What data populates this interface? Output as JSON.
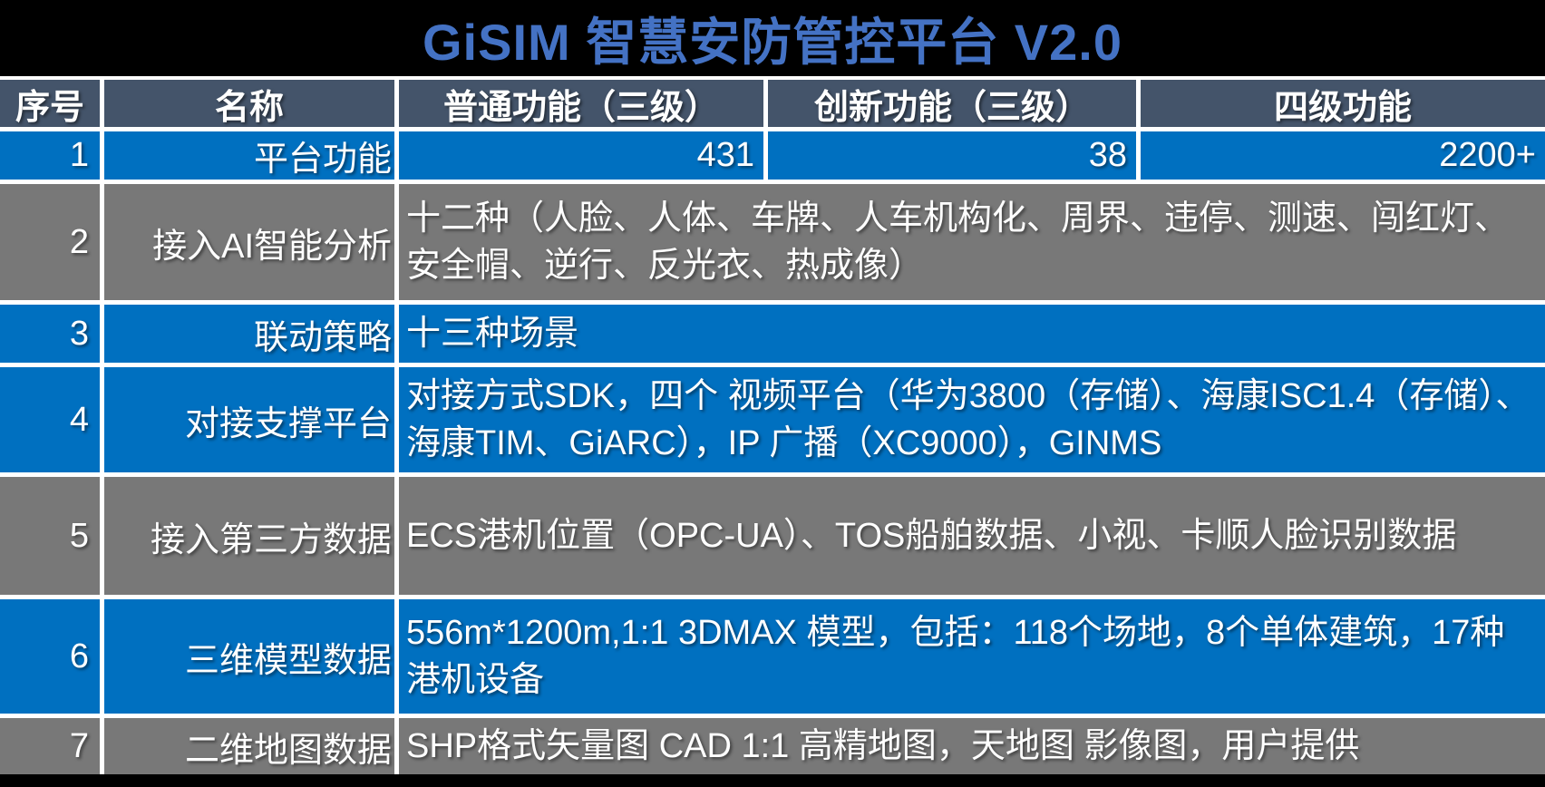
{
  "title": "GiSIM 智慧安防管控平台 V2.0",
  "colors": {
    "title_blue": "#4472C4",
    "header_slate": "#44546A",
    "row_blue": "#0070C0",
    "row_gray": "#787878",
    "separator_white": "#FFFFFF",
    "background_black": "#000000",
    "text_white": "#FFFFFF"
  },
  "table": {
    "columns": [
      "序号",
      "名称",
      "普通功能（三级）",
      "创新功能（三级）",
      "四级功能"
    ],
    "rows": [
      {
        "no": "1",
        "name": "平台功能",
        "tone": "blue",
        "values": [
          "431",
          "38",
          "2200+"
        ]
      },
      {
        "no": "2",
        "name": "接入AI智能分析",
        "tone": "gray",
        "detail": "十二种（人脸、人体、车牌、人车机构化、周界、违停、测速、闯红灯、安全帽、逆行、反光衣、热成像）"
      },
      {
        "no": "3",
        "name": "联动策略",
        "tone": "blue",
        "detail": "十三种场景"
      },
      {
        "no": "4",
        "name": "对接支撑平台",
        "tone": "blue",
        "detail": "对接方式SDK，四个 视频平台（华为3800（存储）、海康ISC1.4（存储）、海康TIM、GiARC），IP 广播（XC9000），GINMS"
      },
      {
        "no": "5",
        "name": "接入第三方数据",
        "tone": "gray",
        "detail": "ECS港机位置（OPC-UA）、TOS船舶数据、小视、卡顺人脸识别数据"
      },
      {
        "no": "6",
        "name": "三维模型数据",
        "tone": "blue",
        "detail": "556m*1200m,1:1 3DMAX 模型，包括：118个场地，8个单体建筑，17种港机设备"
      },
      {
        "no": "7",
        "name": "二维地图数据",
        "tone": "gray",
        "detail": "SHP格式矢量图 CAD 1:1 高精地图，天地图 影像图，用户提供"
      }
    ]
  }
}
